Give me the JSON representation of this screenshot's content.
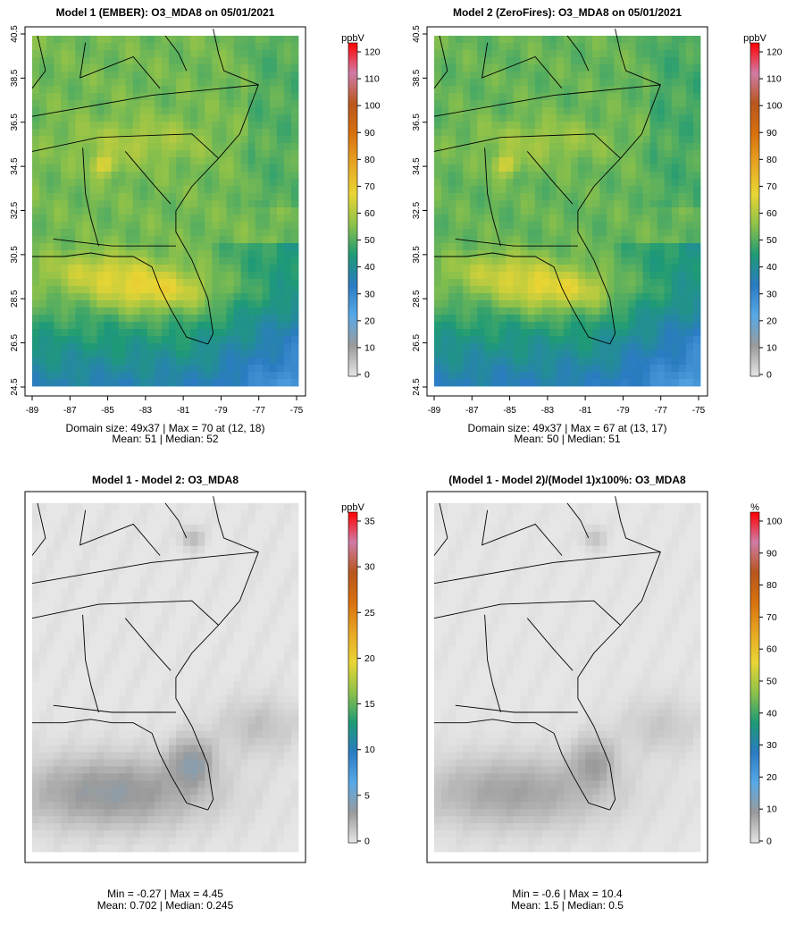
{
  "colorbar": {
    "stops": [
      "#e6e6e6",
      "#9b9b9b",
      "#58a9e6",
      "#2b7bc2",
      "#1e9a76",
      "#8dc14a",
      "#e8d534",
      "#e7a623",
      "#d7700f",
      "#b8561e",
      "#d07ca6",
      "#ff0000"
    ]
  },
  "chart_data": [
    {
      "type": "heatmap",
      "title": "Model 1 (EMBER): O3_MDA8 on 05/01/2021",
      "colorbar_label": "ppbV",
      "colorbar_ticks": [
        "0",
        "10",
        "20",
        "30",
        "40",
        "50",
        "60",
        "70",
        "80",
        "90",
        "100",
        "110",
        "120"
      ],
      "colorbar_range": [
        0,
        120
      ],
      "x_ticks": [
        "-89",
        "-87",
        "-85",
        "-83",
        "-81",
        "-79",
        "-77",
        "-75"
      ],
      "y_ticks": [
        "24.5",
        "26.5",
        "28.5",
        "30.5",
        "32.5",
        "34.5",
        "36.5",
        "38.5",
        "40.5"
      ],
      "xlim": [
        -89,
        -75
      ],
      "ylim": [
        24.5,
        40.5
      ],
      "stats_line1": "Domain size: 49x37 | Max = 70 at (12, 18)",
      "stats_line2": "Mean: 51 |  Median: 52"
    },
    {
      "type": "heatmap",
      "title": "Model 2 (ZeroFires): O3_MDA8 on 05/01/2021",
      "colorbar_label": "ppbV",
      "colorbar_ticks": [
        "0",
        "10",
        "20",
        "30",
        "40",
        "50",
        "60",
        "70",
        "80",
        "90",
        "100",
        "110",
        "120"
      ],
      "colorbar_range": [
        0,
        120
      ],
      "x_ticks": [
        "-89",
        "-87",
        "-85",
        "-83",
        "-81",
        "-79",
        "-77",
        "-75"
      ],
      "y_ticks": [
        "24.5",
        "26.5",
        "28.5",
        "30.5",
        "32.5",
        "34.5",
        "36.5",
        "38.5",
        "40.5"
      ],
      "xlim": [
        -89,
        -75
      ],
      "ylim": [
        24.5,
        40.5
      ],
      "stats_line1": "Domain size: 49x37 | Max = 67 at (13, 17)",
      "stats_line2": "Mean: 50 |  Median: 51"
    },
    {
      "type": "heatmap",
      "title": "Model 1 - Model 2: O3_MDA8",
      "colorbar_label": "ppbV",
      "colorbar_ticks": [
        "0",
        "5",
        "10",
        "15",
        "20",
        "25",
        "30",
        "35"
      ],
      "colorbar_range": [
        0,
        35
      ],
      "stats_line1": "Min = -0.27 | Max = 4.45",
      "stats_line2": "Mean: 0.702 |  Median: 0.245"
    },
    {
      "type": "heatmap",
      "title": "(Model 1 - Model 2)/(Model 1)x100%: O3_MDA8",
      "colorbar_label": "%",
      "colorbar_ticks": [
        "0",
        "10",
        "20",
        "30",
        "40",
        "50",
        "60",
        "70",
        "80",
        "90",
        "100"
      ],
      "colorbar_range": [
        0,
        100
      ],
      "stats_line1": "Min = -0.6 | Max = 10.4",
      "stats_line2": "Mean: 1.5 |  Median: 0.5"
    }
  ]
}
